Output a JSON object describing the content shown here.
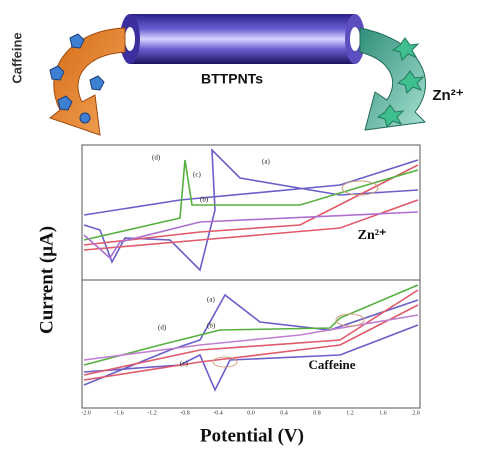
{
  "top": {
    "left_label": "Caffeine",
    "tube_label": "BTTPNTs",
    "right_label": "Zn²⁺"
  },
  "plot": {
    "y_label": "Current (μA)",
    "x_label": "Potential (V)",
    "x_ticks": [
      "-2.0",
      "-1.6",
      "-1.2",
      "-0.8",
      "-0.4",
      "0.0",
      "0.4",
      "0.8",
      "1.2",
      "1.6",
      "2.0"
    ],
    "upper": {
      "label": "Zn²⁺",
      "curves": [
        "(a)",
        "(b)",
        "(c)",
        "(d)"
      ]
    },
    "lower": {
      "label": "Caffeine",
      "curves": [
        "(a)",
        "(b)",
        "(c)",
        "(d)"
      ]
    }
  }
}
